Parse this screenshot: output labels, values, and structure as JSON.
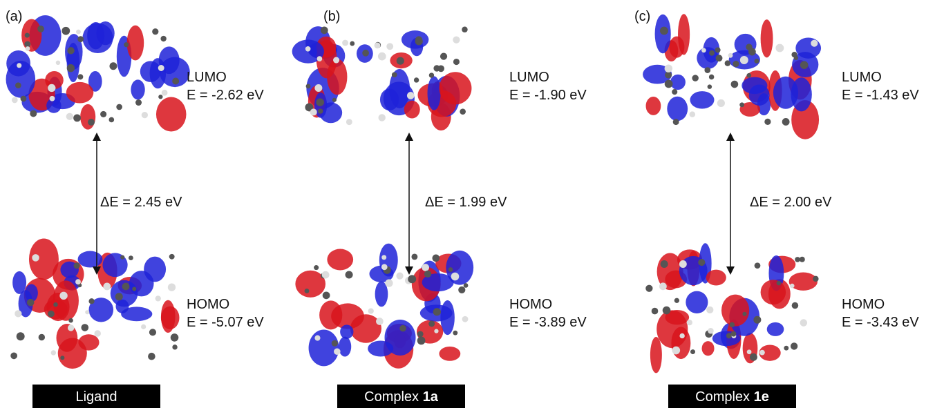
{
  "panels": [
    {
      "label": "(a)",
      "lumo": {
        "name": "LUMO",
        "energy": "E = -2.62 eV"
      },
      "gap": "ΔE = 2.45 eV",
      "homo": {
        "name": "HOMO",
        "energy": "E = -5.07 eV"
      },
      "name": {
        "text": "Ligand"
      }
    },
    {
      "label": "(b)",
      "lumo": {
        "name": "LUMO",
        "energy": "E = -1.90 eV"
      },
      "gap": "ΔE = 1.99 eV",
      "homo": {
        "name": "HOMO",
        "energy": "E = -3.89 eV"
      },
      "name": {
        "text": "Complex ",
        "bold": "1a"
      }
    },
    {
      "label": "(c)",
      "lumo": {
        "name": "LUMO",
        "energy": "E = -1.43 eV"
      },
      "gap": "ΔE = 2.00 eV",
      "homo": {
        "name": "HOMO",
        "energy": "E = -3.43 eV"
      },
      "name": {
        "text": "Complex ",
        "bold": "1e"
      }
    }
  ]
}
